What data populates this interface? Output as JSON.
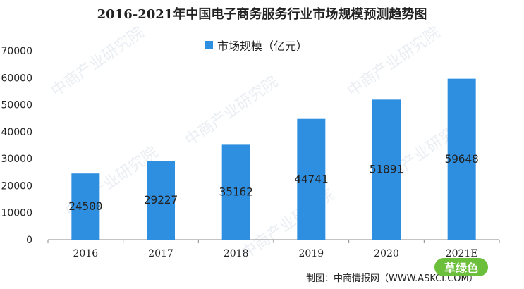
{
  "chart_data": {
    "type": "bar",
    "title": "2016-2021年中国电子商务服务行业市场规模预测趋势图",
    "categories": [
      "2016",
      "2017",
      "2018",
      "2019",
      "2020",
      "2021E"
    ],
    "series": [
      {
        "name": "市场规模（亿元）",
        "values": [
          24500,
          29227,
          35162,
          44741,
          51891,
          59648
        ]
      }
    ],
    "ylim": [
      0,
      70000
    ],
    "yticks": [
      0,
      10000,
      20000,
      30000,
      40000,
      50000,
      60000,
      70000
    ],
    "legend_position": "top-center",
    "grid": false,
    "color": "#2e8fe0"
  },
  "credit": "制图：中商情报网（WWW.ASKCI.COM）",
  "badge": "草绿色",
  "watermark": "中商产业研究院"
}
